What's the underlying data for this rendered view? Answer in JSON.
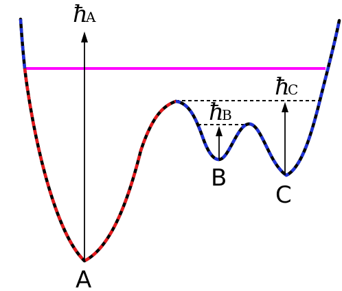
{
  "labels": {
    "minimum_a": "A",
    "minimum_b": "B",
    "minimum_c": "C",
    "height_a_symbol": "ħ",
    "height_a_subscript": "A",
    "height_b_symbol": "ħ",
    "height_b_subscript": "B",
    "height_c_symbol": "ħ",
    "height_c_subscript": "C"
  },
  "colors": {
    "red_basin": "#e41a1c",
    "blue_basin": "#1f32d6",
    "threshold_line": "#ff00ff",
    "outline": "#000000"
  }
}
